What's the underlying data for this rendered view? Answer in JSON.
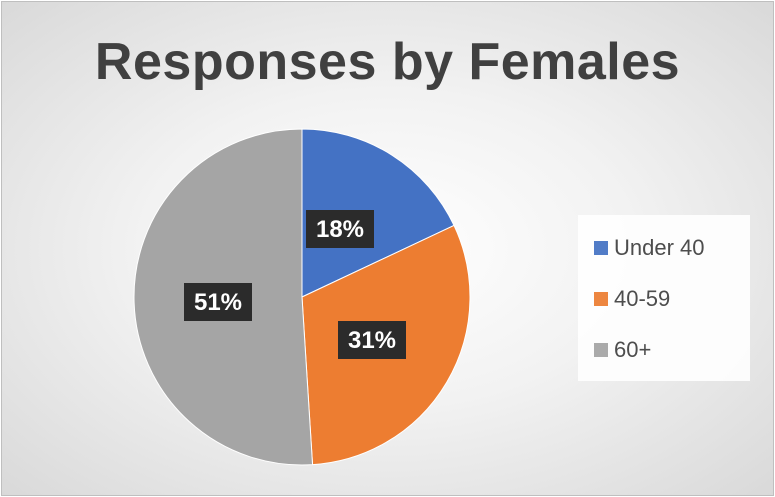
{
  "chart_data": {
    "type": "pie",
    "title": "Responses by Females",
    "categories": [
      "Under 40",
      "40-59",
      "60+"
    ],
    "values": [
      18,
      31,
      51
    ],
    "labels": [
      "18%",
      "31%",
      "51%"
    ],
    "colors": [
      "#4472c4",
      "#ed7d31",
      "#a5a5a5"
    ],
    "legend_position": "right"
  }
}
